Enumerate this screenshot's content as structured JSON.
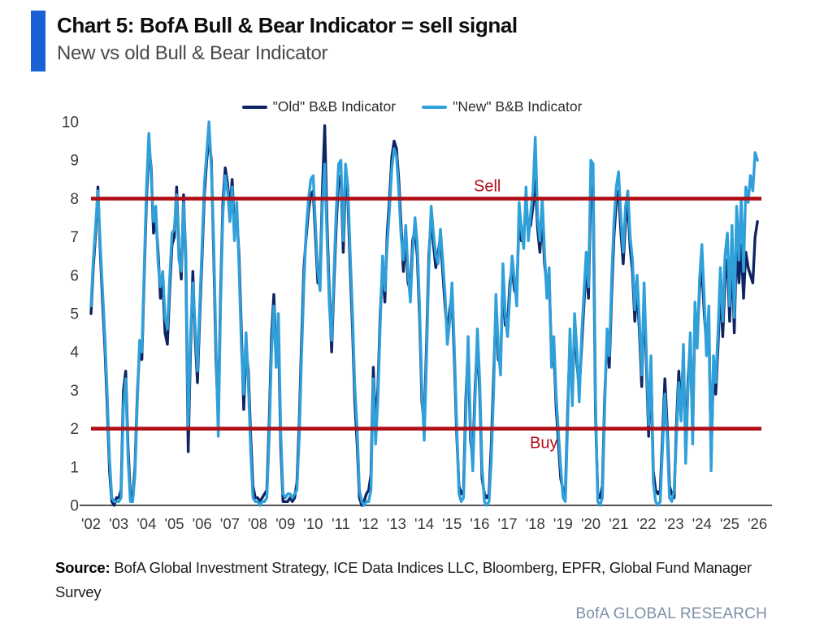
{
  "header": {
    "title": "Chart 5: BofA Bull & Bear Indicator = sell signal",
    "subtitle": "New vs old Bull & Bear Indicator"
  },
  "footer": {
    "source_label": "Source:",
    "source_text": " BofA Global Investment Strategy, ICE Data Indices LLC, Bloomberg, EPFR, Global Fund Manager Survey",
    "brand": "BofA GLOBAL RESEARCH"
  },
  "colors": {
    "accent_bar": "#1961d5",
    "threshold_red": "#b00e16",
    "axis_text": "#3a3a3a",
    "axis_line": "#1a1a1a"
  },
  "chart_data": {
    "type": "line",
    "title": "New vs old Bull & Bear Indicator",
    "xlabel": "",
    "ylabel": "",
    "x_start_year": 2002,
    "x_end_year": 2026,
    "points_per_year": 12,
    "ylim": [
      0,
      10
    ],
    "y_ticks": [
      0,
      1,
      2,
      3,
      4,
      5,
      6,
      7,
      8,
      9,
      10
    ],
    "x_tick_labels": [
      "'02",
      "'03",
      "'04",
      "'05",
      "'06",
      "'07",
      "'08",
      "'09",
      "'10",
      "'11",
      "'12",
      "'13",
      "'14",
      "'15",
      "'16",
      "'17",
      "'18",
      "'19",
      "'20",
      "'21",
      "'22",
      "'23",
      "'24",
      "'25",
      "'26"
    ],
    "grid": false,
    "legend_position": "top-center",
    "thresholds": [
      {
        "value": 8,
        "label": "Sell"
      },
      {
        "value": 2,
        "label": "Buy"
      }
    ],
    "series": [
      {
        "name": "\"Old\" B&B Indicator",
        "color": "#0e2463",
        "values": [
          5.0,
          6.2,
          7.1,
          8.3,
          6.6,
          5.3,
          4.1,
          2.6,
          0.9,
          0.1,
          0.0,
          0.2,
          0.2,
          0.4,
          3.0,
          3.5,
          1.5,
          0.3,
          0.2,
          1.0,
          2.9,
          4.1,
          3.8,
          6.0,
          8.0,
          9.4,
          8.8,
          7.1,
          7.5,
          6.6,
          5.4,
          5.8,
          4.5,
          4.2,
          5.6,
          6.8,
          7.0,
          8.3,
          6.6,
          5.9,
          8.1,
          6.3,
          1.4,
          4.0,
          6.1,
          4.4,
          3.2,
          4.9,
          6.5,
          8.1,
          9.0,
          9.6,
          9.0,
          6.6,
          3.8,
          2.2,
          5.6,
          7.9,
          8.8,
          8.4,
          7.7,
          8.5,
          7.2,
          7.6,
          6.5,
          4.5,
          2.5,
          4.1,
          3.5,
          1.8,
          0.5,
          0.2,
          0.2,
          0.1,
          0.2,
          0.3,
          0.4,
          2.2,
          4.4,
          5.5,
          3.9,
          4.6,
          1.5,
          0.1,
          0.1,
          0.1,
          0.2,
          0.1,
          0.2,
          0.6,
          2.2,
          4.3,
          6.2,
          7.0,
          7.7,
          8.1,
          8.2,
          7.0,
          5.8,
          5.9,
          8.2,
          9.9,
          7.4,
          5.5,
          4.0,
          5.8,
          7.3,
          8.5,
          8.6,
          6.6,
          8.5,
          8.0,
          6.2,
          4.6,
          2.7,
          1.6,
          0.2,
          0.0,
          0.1,
          0.3,
          0.4,
          0.8,
          3.6,
          2.0,
          3.1,
          5.0,
          6.2,
          5.3,
          7.1,
          8.0,
          9.1,
          9.5,
          9.3,
          8.5,
          7.3,
          6.1,
          7.0,
          5.8,
          5.6,
          6.9,
          7.2,
          6.5,
          4.9,
          2.7,
          2.1,
          4.2,
          6.5,
          7.5,
          6.8,
          6.2,
          6.6,
          7.0,
          6.1,
          5.2,
          4.5,
          5.1,
          5.5,
          3.8,
          1.9,
          0.5,
          0.3,
          0.4,
          2.8,
          4.1,
          1.7,
          1.2,
          3.1,
          4.3,
          2.9,
          0.7,
          0.3,
          0.2,
          0.3,
          1.6,
          3.4,
          5.2,
          3.8,
          3.7,
          6.0,
          4.7,
          4.7,
          5.8,
          6.2,
          5.6,
          5.5,
          7.5,
          6.9,
          7.0,
          7.9,
          7.2,
          7.3,
          7.8,
          8.5,
          7.2,
          6.6,
          7.6,
          6.3,
          5.7,
          5.9,
          3.9,
          4.1,
          2.6,
          1.6,
          0.7,
          0.4,
          0.3,
          2.5,
          4.3,
          2.9,
          4.7,
          3.7,
          3.0,
          4.1,
          5.2,
          6.3,
          5.4,
          8.3,
          8.2,
          2.4,
          0.3,
          0.2,
          0.5,
          2.8,
          4.3,
          3.6,
          5.5,
          7.0,
          7.9,
          8.2,
          7.1,
          6.3,
          7.4,
          7.8,
          6.7,
          6.1,
          4.8,
          5.7,
          4.5,
          3.1,
          5.5,
          3.7,
          1.8,
          3.6,
          0.9,
          0.4,
          0.3,
          0.4,
          1.8,
          3.3,
          2.1,
          0.5,
          0.3,
          0.2,
          2.1,
          3.5,
          2.5,
          3.9,
          1.4,
          3.3,
          4.2,
          1.9,
          5.0,
          4.4,
          5.6,
          6.3,
          5.0,
          4.2,
          4.8,
          1.2,
          3.5,
          2.9,
          4.2,
          5.7,
          4.4,
          5.9,
          6.4,
          4.8,
          6.5,
          4.5,
          6.9,
          5.8,
          6.8,
          5.4,
          6.6,
          6.2,
          6.0,
          5.8,
          7.0,
          7.4
        ]
      },
      {
        "name": "\"New\" B&B Indicator",
        "color": "#2fa0d9",
        "values": [
          5.2,
          6.4,
          7.3,
          8.2,
          6.8,
          5.6,
          4.4,
          2.9,
          1.2,
          0.2,
          0.1,
          0.1,
          0.1,
          0.2,
          2.6,
          3.3,
          1.2,
          0.1,
          0.1,
          0.8,
          2.7,
          4.3,
          4.0,
          6.2,
          8.3,
          9.7,
          8.6,
          7.4,
          7.8,
          6.3,
          5.7,
          6.1,
          4.9,
          4.6,
          5.9,
          7.1,
          7.2,
          8.1,
          6.4,
          6.1,
          7.9,
          6.6,
          2.0,
          4.4,
          5.8,
          4.7,
          3.5,
          5.2,
          6.8,
          8.4,
          9.2,
          10.0,
          8.8,
          6.9,
          4.2,
          1.8,
          5.3,
          7.6,
          8.6,
          8.2,
          7.4,
          8.3,
          6.9,
          7.9,
          6.2,
          4.1,
          2.9,
          4.5,
          3.2,
          1.4,
          0.2,
          0.1,
          0.1,
          0.0,
          0.1,
          0.1,
          0.2,
          1.8,
          4.0,
          5.2,
          3.6,
          5.0,
          1.9,
          0.3,
          0.2,
          0.3,
          0.3,
          0.2,
          0.3,
          0.4,
          1.8,
          3.9,
          5.8,
          7.2,
          8.0,
          8.5,
          8.6,
          7.3,
          6.1,
          5.6,
          7.8,
          8.9,
          7.0,
          5.2,
          4.3,
          6.1,
          7.7,
          8.9,
          9.0,
          6.9,
          8.9,
          8.3,
          6.6,
          5.0,
          3.1,
          2.0,
          0.4,
          0.1,
          0.0,
          0.1,
          0.1,
          0.4,
          3.3,
          1.6,
          2.8,
          4.7,
          6.5,
          5.6,
          6.8,
          7.7,
          8.8,
          9.3,
          9.1,
          8.2,
          7.0,
          6.4,
          7.3,
          6.1,
          5.3,
          6.6,
          7.5,
          6.8,
          5.2,
          3.0,
          1.7,
          3.8,
          6.2,
          7.8,
          7.1,
          6.5,
          6.3,
          7.2,
          6.4,
          5.5,
          4.2,
          4.8,
          5.8,
          4.1,
          2.2,
          0.3,
          0.1,
          0.2,
          2.4,
          4.4,
          2.0,
          0.9,
          2.8,
          4.6,
          3.2,
          1.0,
          0.1,
          0.0,
          0.1,
          1.2,
          3.0,
          5.5,
          4.1,
          3.4,
          6.3,
          5.0,
          4.4,
          5.5,
          6.5,
          5.9,
          5.2,
          7.9,
          7.2,
          6.7,
          8.3,
          6.9,
          7.6,
          8.2,
          9.6,
          7.5,
          6.9,
          8.0,
          6.6,
          5.4,
          6.2,
          3.6,
          4.4,
          2.9,
          1.9,
          1.0,
          0.2,
          0.1,
          2.2,
          4.6,
          2.6,
          5.0,
          4.0,
          2.7,
          4.4,
          5.5,
          6.6,
          5.7,
          9.0,
          8.9,
          2.8,
          0.1,
          0.0,
          0.2,
          2.5,
          4.6,
          3.9,
          5.9,
          7.4,
          8.3,
          8.7,
          7.5,
          6.6,
          7.8,
          8.2,
          7.0,
          6.4,
          5.1,
          6.0,
          4.8,
          3.4,
          5.8,
          4.0,
          2.1,
          3.9,
          0.6,
          0.1,
          0.0,
          0.1,
          1.5,
          2.9,
          1.8,
          0.2,
          0.1,
          0.4,
          1.8,
          3.2,
          2.2,
          4.2,
          1.1,
          3.0,
          4.5,
          1.6,
          5.3,
          4.1,
          5.9,
          6.8,
          5.4,
          3.9,
          5.2,
          0.9,
          3.9,
          3.2,
          4.6,
          6.2,
          4.8,
          6.5,
          7.1,
          5.2,
          7.3,
          4.9,
          7.8,
          6.4,
          8.0,
          6.1,
          8.3,
          7.9,
          8.6,
          8.2,
          9.2,
          9.0
        ]
      }
    ]
  }
}
